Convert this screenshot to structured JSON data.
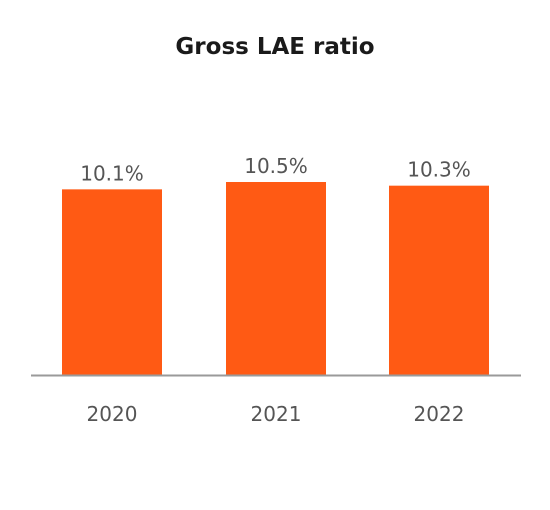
{
  "chart_data": {
    "type": "bar",
    "title": "Gross LAE ratio",
    "categories": [
      "2020",
      "2021",
      "2022"
    ],
    "values": [
      10.1,
      10.5,
      10.3
    ],
    "data_labels": [
      "10.1%",
      "10.5%",
      "10.3%"
    ],
    "xlabel": "",
    "ylabel": "",
    "ylim": [
      0,
      10.5
    ],
    "grid": false,
    "legend": "none",
    "colors": {
      "bar": "#FF5A14",
      "axis": "#9A9A9A",
      "label": "#555555"
    }
  }
}
